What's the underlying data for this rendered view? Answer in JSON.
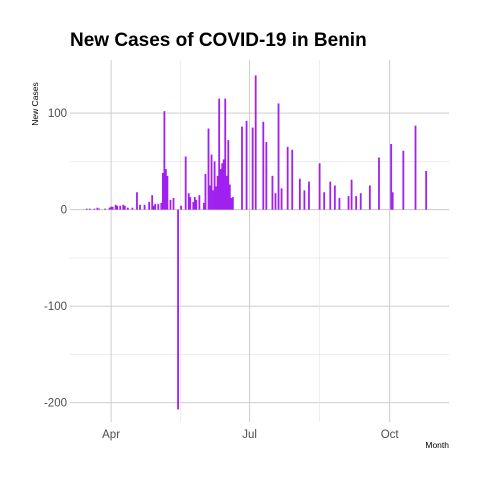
{
  "chart_data": {
    "type": "bar",
    "title": "New Cases of COVID-19 in Benin",
    "xlabel": "Month",
    "ylabel": "New Cases",
    "x_axis": {
      "type": "date",
      "range": [
        "2020-03-05",
        "2020-11-09"
      ]
    },
    "ylim": [
      -220,
      155
    ],
    "yticks": [
      -200,
      -100,
      0,
      100
    ],
    "xticks": [
      {
        "date": "2020-04-01",
        "label": "Apr"
      },
      {
        "date": "2020-07-01",
        "label": "Jul"
      },
      {
        "date": "2020-10-01",
        "label": "Oct"
      }
    ],
    "grid": true,
    "bar_color": "#a020f0",
    "points": [
      [
        "2020-03-16",
        1
      ],
      [
        "2020-03-18",
        1
      ],
      [
        "2020-03-21",
        1
      ],
      [
        "2020-03-23",
        2
      ],
      [
        "2020-03-24",
        1
      ],
      [
        "2020-03-28",
        1
      ],
      [
        "2020-03-31",
        2
      ],
      [
        "2020-04-01",
        3
      ],
      [
        "2020-04-02",
        3
      ],
      [
        "2020-04-04",
        5
      ],
      [
        "2020-04-05",
        4
      ],
      [
        "2020-04-07",
        4
      ],
      [
        "2020-04-09",
        5
      ],
      [
        "2020-04-10",
        4
      ],
      [
        "2020-04-12",
        2
      ],
      [
        "2020-04-15",
        2
      ],
      [
        "2020-04-18",
        18
      ],
      [
        "2020-04-20",
        5
      ],
      [
        "2020-04-23",
        5
      ],
      [
        "2020-04-26",
        8
      ],
      [
        "2020-04-28",
        15
      ],
      [
        "2020-04-29",
        4
      ],
      [
        "2020-04-30",
        6
      ],
      [
        "2020-05-02",
        6
      ],
      [
        "2020-05-04",
        7
      ],
      [
        "2020-05-05",
        38
      ],
      [
        "2020-05-06",
        102
      ],
      [
        "2020-05-07",
        42
      ],
      [
        "2020-05-08",
        35
      ],
      [
        "2020-05-10",
        10
      ],
      [
        "2020-05-12",
        12
      ],
      [
        "2020-05-15",
        -207
      ],
      [
        "2020-05-17",
        4
      ],
      [
        "2020-05-20",
        55
      ],
      [
        "2020-05-22",
        17
      ],
      [
        "2020-05-23",
        13
      ],
      [
        "2020-05-25",
        8
      ],
      [
        "2020-05-26",
        13
      ],
      [
        "2020-05-27",
        10
      ],
      [
        "2020-05-29",
        15
      ],
      [
        "2020-06-01",
        7
      ],
      [
        "2020-06-02",
        37
      ],
      [
        "2020-06-04",
        84
      ],
      [
        "2020-06-05",
        25
      ],
      [
        "2020-06-06",
        57
      ],
      [
        "2020-06-07",
        20
      ],
      [
        "2020-06-08",
        50
      ],
      [
        "2020-06-09",
        24
      ],
      [
        "2020-06-10",
        35
      ],
      [
        "2020-06-11",
        115
      ],
      [
        "2020-06-12",
        42
      ],
      [
        "2020-06-13",
        48
      ],
      [
        "2020-06-14",
        52
      ],
      [
        "2020-06-15",
        115
      ],
      [
        "2020-06-16",
        35
      ],
      [
        "2020-06-17",
        72
      ],
      [
        "2020-06-18",
        26
      ],
      [
        "2020-06-19",
        12
      ],
      [
        "2020-06-20",
        13
      ],
      [
        "2020-06-26",
        86
      ],
      [
        "2020-06-29",
        92
      ],
      [
        "2020-07-03",
        85
      ],
      [
        "2020-07-05",
        139
      ],
      [
        "2020-07-10",
        91
      ],
      [
        "2020-07-12",
        70
      ],
      [
        "2020-07-16",
        35
      ],
      [
        "2020-07-18",
        17
      ],
      [
        "2020-07-20",
        110
      ],
      [
        "2020-07-22",
        22
      ],
      [
        "2020-07-26",
        65
      ],
      [
        "2020-07-29",
        62
      ],
      [
        "2020-08-03",
        32
      ],
      [
        "2020-08-06",
        20
      ],
      [
        "2020-08-09",
        29
      ],
      [
        "2020-08-16",
        48
      ],
      [
        "2020-08-19",
        18
      ],
      [
        "2020-08-23",
        29
      ],
      [
        "2020-08-26",
        25
      ],
      [
        "2020-08-29",
        12
      ],
      [
        "2020-09-04",
        14
      ],
      [
        "2020-09-06",
        31
      ],
      [
        "2020-09-09",
        14
      ],
      [
        "2020-09-12",
        17
      ],
      [
        "2020-09-18",
        25
      ],
      [
        "2020-09-24",
        54
      ],
      [
        "2020-10-02",
        68
      ],
      [
        "2020-10-03",
        18
      ],
      [
        "2020-10-10",
        61
      ],
      [
        "2020-10-18",
        87
      ],
      [
        "2020-10-25",
        40
      ]
    ]
  }
}
